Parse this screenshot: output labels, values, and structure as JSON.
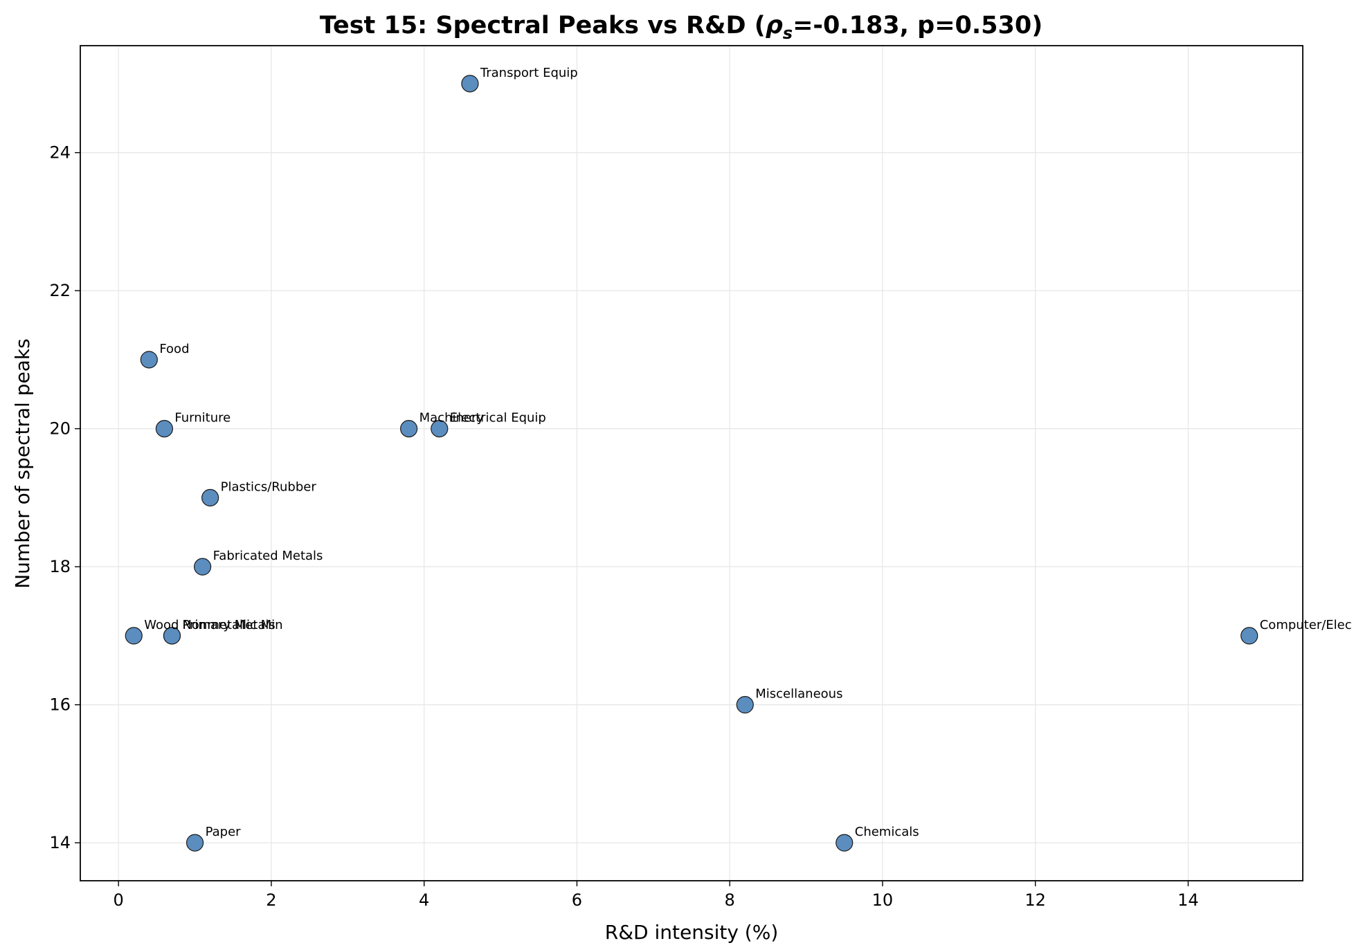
{
  "chart_data": {
    "type": "scatter",
    "title_prefix": "Test 15: Spectral Peaks vs R&D (",
    "title_rho": "ρ",
    "title_sub": "s",
    "title_suffix": "=-0.183, p=0.530)",
    "xlabel": "R&D intensity (%)",
    "ylabel": "Number of spectral peaks",
    "xlim": [
      -0.5,
      15.5
    ],
    "ylim": [
      13.45,
      25.55
    ],
    "xticks": [
      0,
      2,
      4,
      6,
      8,
      10,
      12,
      14
    ],
    "yticks": [
      14,
      16,
      18,
      20,
      22,
      24
    ],
    "grid": true,
    "marker_color": "#5b8dbf",
    "marker_edge_color": "#1a1a1a",
    "points": [
      {
        "label": "Transport Equip",
        "x": 4.6,
        "y": 25
      },
      {
        "label": "Food",
        "x": 0.4,
        "y": 21
      },
      {
        "label": "Furniture",
        "x": 0.6,
        "y": 20
      },
      {
        "label": "Machinery",
        "x": 3.8,
        "y": 20
      },
      {
        "label": "Electrical Equip",
        "x": 4.2,
        "y": 20
      },
      {
        "label": "Plastics/Rubber",
        "x": 1.2,
        "y": 19
      },
      {
        "label": "Fabricated Metals",
        "x": 1.1,
        "y": 18
      },
      {
        "label": "Wood",
        "x": 0.2,
        "y": 17
      },
      {
        "label": "Nonmetallic Min",
        "x": 0.7,
        "y": 17
      },
      {
        "label": "Primary Metals",
        "x": 0.7,
        "y": 17
      },
      {
        "label": "Computer/Elec",
        "x": 14.8,
        "y": 17
      },
      {
        "label": "Miscellaneous",
        "x": 8.2,
        "y": 16
      },
      {
        "label": "Paper",
        "x": 1.0,
        "y": 14
      },
      {
        "label": "Chemicals",
        "x": 9.5,
        "y": 14
      }
    ]
  }
}
